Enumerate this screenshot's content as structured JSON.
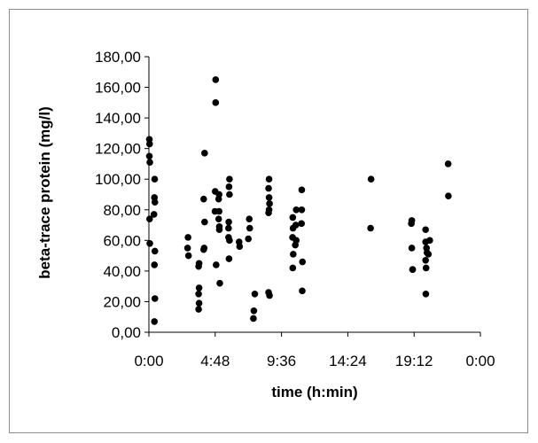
{
  "chart_data": {
    "type": "scatter",
    "xlabel": "time (h:min)",
    "ylabel": "beta-trace protein (mg/l)",
    "xlim": [
      0,
      1440
    ],
    "ylim": [
      0,
      180
    ],
    "x_ticks": [
      "0:00",
      "4:48",
      "9:36",
      "14:24",
      "19:12",
      "0:00"
    ],
    "y_ticks": [
      "0,00",
      "20,00",
      "40,00",
      "60,00",
      "80,00",
      "100,00",
      "120,00",
      "140,00",
      "160,00",
      "180,00"
    ],
    "grid": false,
    "legend": "none",
    "marker_color": "#000000",
    "x_unit": "minutes",
    "points": [
      [
        2,
        126
      ],
      [
        3,
        123
      ],
      [
        2,
        115
      ],
      [
        4,
        111
      ],
      [
        3,
        74
      ],
      [
        4,
        58
      ],
      [
        25,
        100
      ],
      [
        24,
        88
      ],
      [
        26,
        85
      ],
      [
        22,
        77
      ],
      [
        26,
        53
      ],
      [
        24,
        44
      ],
      [
        26,
        22
      ],
      [
        24,
        7
      ],
      [
        170,
        62
      ],
      [
        168,
        55
      ],
      [
        172,
        50
      ],
      [
        218,
        45
      ],
      [
        216,
        43
      ],
      [
        218,
        29
      ],
      [
        216,
        25
      ],
      [
        218,
        19
      ],
      [
        216,
        15
      ],
      [
        242,
        117
      ],
      [
        238,
        87
      ],
      [
        242,
        72
      ],
      [
        240,
        55
      ],
      [
        238,
        54
      ],
      [
        290,
        165
      ],
      [
        290,
        150
      ],
      [
        288,
        92
      ],
      [
        287,
        79
      ],
      [
        292,
        44
      ],
      [
        305,
        90
      ],
      [
        303,
        87
      ],
      [
        305,
        79
      ],
      [
        303,
        74
      ],
      [
        306,
        69
      ],
      [
        306,
        67
      ],
      [
        308,
        32
      ],
      [
        350,
        100
      ],
      [
        348,
        95
      ],
      [
        350,
        90
      ],
      [
        347,
        72
      ],
      [
        346,
        68
      ],
      [
        346,
        62
      ],
      [
        350,
        60
      ],
      [
        348,
        48
      ],
      [
        392,
        59
      ],
      [
        394,
        56
      ],
      [
        436,
        74
      ],
      [
        438,
        68
      ],
      [
        432,
        61
      ],
      [
        460,
        25
      ],
      [
        456,
        14
      ],
      [
        454,
        9
      ],
      [
        522,
        100
      ],
      [
        520,
        94
      ],
      [
        522,
        88
      ],
      [
        524,
        84
      ],
      [
        522,
        80
      ],
      [
        520,
        78
      ],
      [
        520,
        26
      ],
      [
        524,
        24
      ],
      [
        625,
        75
      ],
      [
        626,
        68
      ],
      [
        624,
        62
      ],
      [
        627,
        51
      ],
      [
        625,
        42
      ],
      [
        640,
        80
      ],
      [
        638,
        70
      ],
      [
        640,
        60
      ],
      [
        636,
        57
      ],
      [
        664,
        93
      ],
      [
        664,
        80
      ],
      [
        663,
        71
      ],
      [
        667,
        46
      ],
      [
        666,
        27
      ],
      [
        965,
        100
      ],
      [
        963,
        68
      ],
      [
        1142,
        73
      ],
      [
        1140,
        71
      ],
      [
        1142,
        55
      ],
      [
        1145,
        41
      ],
      [
        1146,
        41
      ],
      [
        1202,
        67
      ],
      [
        1202,
        59
      ],
      [
        1206,
        55
      ],
      [
        1208,
        52
      ],
      [
        1202,
        47
      ],
      [
        1204,
        42
      ],
      [
        1203,
        25
      ],
      [
        1220,
        60
      ],
      [
        1214,
        51
      ],
      [
        1300,
        110
      ],
      [
        1301,
        89
      ]
    ]
  }
}
